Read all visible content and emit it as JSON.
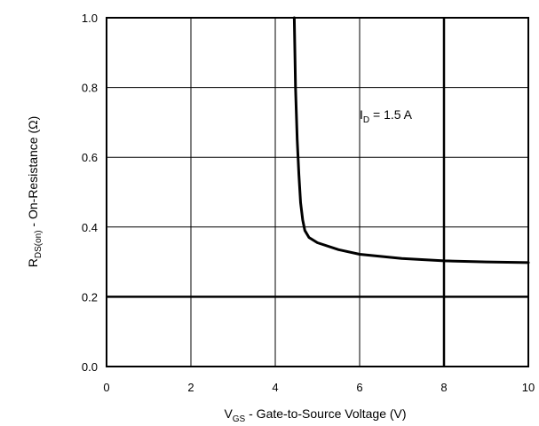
{
  "chart_data": {
    "type": "line",
    "title": "",
    "xlabel": {
      "main": "V",
      "sub": "GS",
      "rest": " - Gate-to-Source Voltage (V)"
    },
    "ylabel": {
      "main": "R",
      "sub": "DS(on)",
      "rest": " - On-Resistance (Ω)"
    },
    "xlim": [
      0,
      10
    ],
    "ylim": [
      0,
      1.0
    ],
    "xticks": [
      0,
      2,
      4,
      6,
      8,
      10
    ],
    "yticks": [
      0.0,
      0.2,
      0.4,
      0.6,
      0.8,
      1.0
    ],
    "xtick_labels": [
      "0",
      "2",
      "4",
      "6",
      "8",
      "10"
    ],
    "ytick_labels": [
      "0.0",
      "0.2",
      "0.4",
      "0.6",
      "0.8",
      "1.0"
    ],
    "grid": true,
    "series": [
      {
        "x": [
          4.45,
          4.48,
          4.52,
          4.56,
          4.6,
          4.65,
          4.7,
          4.8,
          5.0,
          5.5,
          6.0,
          7.0,
          8.0,
          9.0,
          10.0
        ],
        "y": [
          1.0,
          0.8,
          0.65,
          0.55,
          0.47,
          0.42,
          0.39,
          0.37,
          0.355,
          0.335,
          0.322,
          0.31,
          0.303,
          0.3,
          0.298
        ]
      }
    ],
    "annotations": [
      {
        "main": "I",
        "sub": "D",
        "rest": " =  1.5 A",
        "x": 6.0,
        "y": 0.71
      }
    ]
  },
  "colors": {
    "line": "#000000",
    "grid": "#000000",
    "background": "#ffffff"
  }
}
